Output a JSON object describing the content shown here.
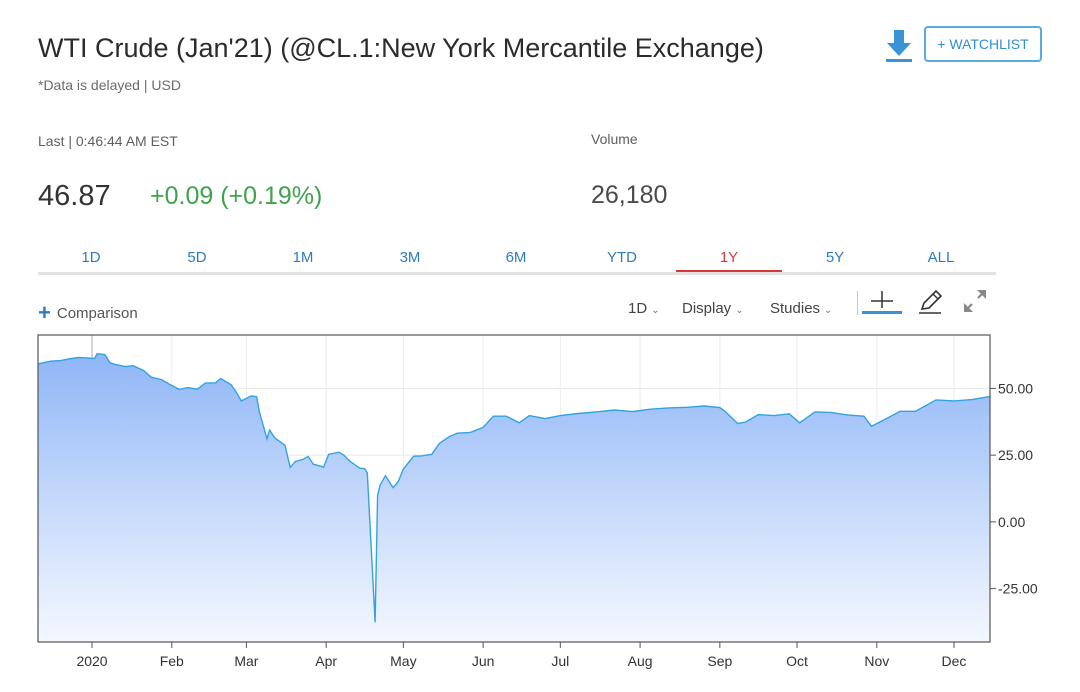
{
  "header": {
    "title": "WTI Crude (Jan'21) (@CL.1:New York Mercantile Exchange)",
    "subtitle": "*Data is delayed | USD",
    "watchlist_label": "+ WATCHLIST",
    "download_icon": "download-icon"
  },
  "quote": {
    "last_label": "Last | 0:46:44 AM EST",
    "price": "46.87",
    "change": "+0.09 (+0.19%)",
    "volume_label": "Volume",
    "volume": "26,180"
  },
  "ranges": {
    "items": [
      "1D",
      "5D",
      "1M",
      "3M",
      "6M",
      "YTD",
      "1Y",
      "5Y",
      "ALL"
    ],
    "active": "1Y"
  },
  "toolbar": {
    "comparison_label": "Comparison",
    "interval_label": "1D",
    "display_label": "Display",
    "studies_label": "Studies",
    "icons": [
      "crosshair-icon",
      "pencil-icon",
      "expand-icon"
    ]
  },
  "colors": {
    "accent": "#2f7bbf",
    "active_range": "#d9383a",
    "up": "#3fa34d",
    "line": "#33a3e0",
    "fill_top": "#8fb6f7"
  },
  "chart_data": {
    "type": "area",
    "title": "",
    "xlabel": "",
    "ylabel": "",
    "ylim": [
      -45,
      70
    ],
    "yticks": [
      "50.00",
      "25.00",
      "0.00",
      "-25.00"
    ],
    "ytick_values": [
      50,
      25,
      0,
      -25
    ],
    "x_tick_labels": [
      "2020",
      "Feb",
      "Mar",
      "Apr",
      "May",
      "Jun",
      "Jul",
      "Aug",
      "Sep",
      "Oct",
      "Nov",
      "Dec"
    ],
    "x_tick_dates": [
      "2020-01-01",
      "2020-02-01",
      "2020-03-01",
      "2020-04-01",
      "2020-05-01",
      "2020-06-01",
      "2020-07-01",
      "2020-08-01",
      "2020-09-01",
      "2020-10-01",
      "2020-11-01",
      "2020-12-01"
    ],
    "x_range": [
      "2019-12-11",
      "2020-12-15"
    ],
    "grid": true,
    "series": [
      {
        "x": [
          "2019-12-11",
          "2019-12-16",
          "2019-12-20",
          "2019-12-24",
          "2019-12-27",
          "2020-01-02",
          "2020-01-03",
          "2020-01-06",
          "2020-01-08",
          "2020-01-10",
          "2020-01-14",
          "2020-01-17",
          "2020-01-21",
          "2020-01-24",
          "2020-01-28",
          "2020-01-31",
          "2020-02-04",
          "2020-02-07",
          "2020-02-11",
          "2020-02-14",
          "2020-02-18",
          "2020-02-20",
          "2020-02-24",
          "2020-02-26",
          "2020-02-28",
          "2020-03-03",
          "2020-03-05",
          "2020-03-06",
          "2020-03-09",
          "2020-03-10",
          "2020-03-12",
          "2020-03-16",
          "2020-03-18",
          "2020-03-20",
          "2020-03-23",
          "2020-03-25",
          "2020-03-27",
          "2020-03-31",
          "2020-04-02",
          "2020-04-06",
          "2020-04-08",
          "2020-04-10",
          "2020-04-14",
          "2020-04-16",
          "2020-04-17",
          "2020-04-20",
          "2020-04-21",
          "2020-04-22",
          "2020-04-24",
          "2020-04-27",
          "2020-04-29",
          "2020-05-01",
          "2020-05-05",
          "2020-05-08",
          "2020-05-12",
          "2020-05-15",
          "2020-05-19",
          "2020-05-22",
          "2020-05-27",
          "2020-06-01",
          "2020-06-05",
          "2020-06-10",
          "2020-06-15",
          "2020-06-19",
          "2020-06-25",
          "2020-07-01",
          "2020-07-08",
          "2020-07-15",
          "2020-07-22",
          "2020-07-29",
          "2020-08-05",
          "2020-08-12",
          "2020-08-19",
          "2020-08-26",
          "2020-09-01",
          "2020-09-03",
          "2020-09-08",
          "2020-09-11",
          "2020-09-16",
          "2020-09-22",
          "2020-09-28",
          "2020-10-02",
          "2020-10-08",
          "2020-10-14",
          "2020-10-21",
          "2020-10-27",
          "2020-10-30",
          "2020-11-05",
          "2020-11-10",
          "2020-11-16",
          "2020-11-24",
          "2020-12-01",
          "2020-12-08",
          "2020-12-15"
        ],
        "values": [
          59.2,
          60.2,
          60.5,
          61.2,
          61.6,
          61.2,
          63.0,
          62.7,
          59.6,
          59.0,
          58.2,
          58.5,
          56.7,
          54.2,
          53.3,
          51.6,
          49.6,
          50.3,
          49.7,
          52.0,
          52.1,
          53.7,
          51.4,
          48.7,
          45.3,
          47.2,
          46.8,
          41.3,
          31.1,
          34.4,
          31.5,
          28.7,
          20.4,
          22.6,
          23.4,
          24.5,
          21.6,
          20.5,
          25.3,
          26.1,
          24.9,
          22.9,
          20.1,
          19.9,
          18.3,
          -37.6,
          10.0,
          13.8,
          17.3,
          12.8,
          15.1,
          19.8,
          24.6,
          24.7,
          25.3,
          29.4,
          32.0,
          33.2,
          33.5,
          35.4,
          39.6,
          39.6,
          37.1,
          39.8,
          38.7,
          39.8,
          40.6,
          41.2,
          41.9,
          41.3,
          42.2,
          42.7,
          42.9,
          43.4,
          42.8,
          41.4,
          36.8,
          37.4,
          40.2,
          39.8,
          40.5,
          37.1,
          41.2,
          41.0,
          40.0,
          39.6,
          35.8,
          38.8,
          41.4,
          41.4,
          45.7,
          45.3,
          45.8,
          47.0
        ]
      }
    ]
  }
}
